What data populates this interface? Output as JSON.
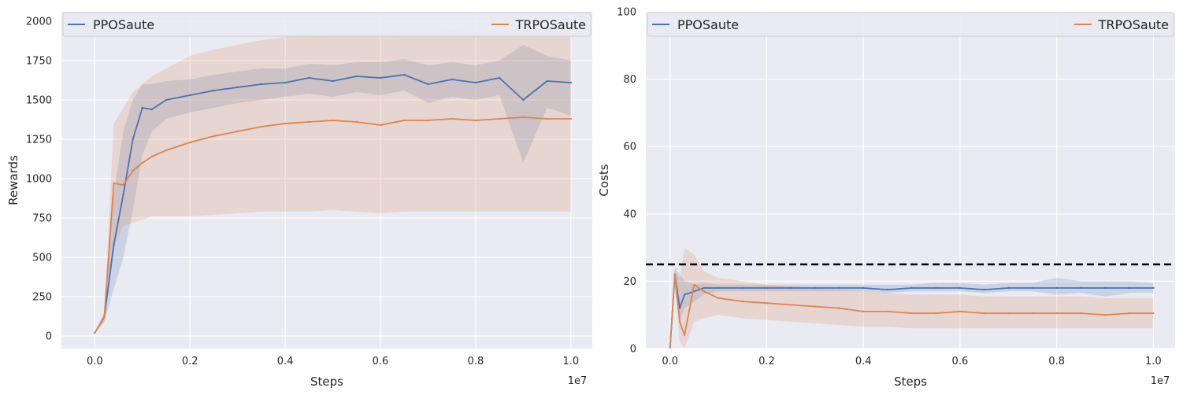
{
  "colors": {
    "background": "#eaeaf2",
    "grid": "#ffffff",
    "ppo": "#4c72b0",
    "trpo": "#dd8452",
    "threshold": "#000000"
  },
  "chart_data": [
    {
      "type": "line",
      "xlabel": "Steps",
      "ylabel": "Rewards",
      "x_offset_label": "1e7",
      "xlim": [
        -0.07,
        1.045
      ],
      "ylim": [
        -80,
        2060
      ],
      "xticks": [
        0.0,
        0.2,
        0.4,
        0.6,
        0.8,
        1.0
      ],
      "xtick_labels": [
        "0.0",
        "0.2",
        "0.4",
        "0.6",
        "0.8",
        "1.0"
      ],
      "yticks": [
        0,
        250,
        500,
        750,
        1000,
        1250,
        1500,
        1750,
        2000
      ],
      "ytick_labels": [
        "0",
        "250",
        "500",
        "750",
        "1000",
        "1250",
        "1500",
        "1750",
        "2000"
      ],
      "grid": true,
      "legend": {
        "placement": "top",
        "entries": [
          "PPOSaute",
          "TRPOSaute"
        ]
      },
      "x": [
        0.0,
        0.02,
        0.04,
        0.06,
        0.08,
        0.1,
        0.12,
        0.15,
        0.2,
        0.25,
        0.3,
        0.35,
        0.4,
        0.45,
        0.5,
        0.55,
        0.6,
        0.65,
        0.7,
        0.75,
        0.8,
        0.85,
        0.9,
        0.95,
        1.0
      ],
      "series": [
        {
          "name": "PPOSaute",
          "values": [
            20,
            120,
            580,
            900,
            1250,
            1450,
            1440,
            1500,
            1530,
            1560,
            1580,
            1600,
            1610,
            1640,
            1620,
            1650,
            1640,
            1660,
            1600,
            1630,
            1610,
            1640,
            1500,
            1620,
            1610
          ],
          "lower": [
            20,
            90,
            300,
            500,
            800,
            1150,
            1300,
            1380,
            1420,
            1450,
            1480,
            1500,
            1520,
            1540,
            1520,
            1550,
            1530,
            1560,
            1480,
            1520,
            1500,
            1530,
            1100,
            1450,
            1400
          ],
          "upper": [
            20,
            150,
            900,
            1300,
            1500,
            1600,
            1600,
            1620,
            1630,
            1660,
            1680,
            1700,
            1700,
            1730,
            1720,
            1740,
            1740,
            1760,
            1720,
            1740,
            1720,
            1750,
            1850,
            1780,
            1750
          ]
        },
        {
          "name": "TRPOSaute",
          "values": [
            20,
            120,
            970,
            960,
            1050,
            1100,
            1140,
            1180,
            1230,
            1270,
            1300,
            1330,
            1350,
            1360,
            1370,
            1360,
            1340,
            1370,
            1370,
            1380,
            1370,
            1380,
            1390,
            1380,
            1380
          ],
          "lower": [
            20,
            90,
            560,
            700,
            720,
            740,
            760,
            760,
            760,
            770,
            780,
            790,
            790,
            790,
            800,
            790,
            780,
            790,
            790,
            790,
            790,
            790,
            790,
            790,
            790
          ],
          "upper": [
            20,
            150,
            1350,
            1450,
            1550,
            1600,
            1650,
            1700,
            1780,
            1820,
            1850,
            1880,
            1900,
            1910,
            1920,
            1920,
            1920,
            1930,
            1930,
            1940,
            1930,
            1940,
            1950,
            1950,
            1950
          ]
        }
      ]
    },
    {
      "type": "line",
      "xlabel": "Steps",
      "ylabel": "Costs",
      "x_offset_label": "1e7",
      "xlim": [
        -0.05,
        1.045
      ],
      "ylim": [
        0,
        100
      ],
      "xticks": [
        0.0,
        0.2,
        0.4,
        0.6,
        0.8,
        1.0
      ],
      "xtick_labels": [
        "0.0",
        "0.2",
        "0.4",
        "0.6",
        "0.8",
        "1.0"
      ],
      "yticks": [
        0,
        20,
        40,
        60,
        80,
        100
      ],
      "ytick_labels": [
        "0",
        "20",
        "40",
        "60",
        "80",
        "100"
      ],
      "grid": true,
      "threshold": 25,
      "legend": {
        "placement": "top",
        "entries": [
          "PPOSaute",
          "TRPOSaute"
        ]
      },
      "x": [
        0.0,
        0.01,
        0.02,
        0.03,
        0.05,
        0.07,
        0.1,
        0.15,
        0.2,
        0.25,
        0.3,
        0.35,
        0.4,
        0.45,
        0.5,
        0.55,
        0.6,
        0.65,
        0.7,
        0.75,
        0.8,
        0.85,
        0.9,
        0.95,
        1.0
      ],
      "series": [
        {
          "name": "PPOSaute",
          "values": [
            0,
            22,
            12,
            16,
            17,
            18,
            18,
            18,
            18,
            18,
            18,
            18,
            18,
            17.5,
            18,
            18,
            18,
            17.5,
            18,
            18,
            18,
            18,
            18,
            18,
            18
          ],
          "lower": [
            0,
            18,
            8,
            12,
            14,
            16,
            17,
            17,
            17,
            17,
            17,
            17,
            17,
            16.5,
            17,
            17,
            17,
            16.5,
            17,
            17,
            16,
            16.5,
            15.5,
            16.5,
            16.5
          ],
          "upper": [
            0,
            24,
            22,
            20,
            19,
            19.5,
            19,
            19,
            19,
            19,
            19,
            19,
            19,
            19,
            19,
            19.5,
            19.5,
            19,
            19.5,
            19.5,
            21,
            20,
            20,
            20,
            19.5
          ]
        },
        {
          "name": "TRPOSaute",
          "values": [
            0,
            22,
            8,
            4,
            19,
            17,
            15,
            14,
            13.5,
            13,
            12.5,
            12,
            11,
            11,
            10.5,
            10.5,
            11,
            10.5,
            10.5,
            10.5,
            10.5,
            10.5,
            10,
            10.5,
            10.5
          ],
          "lower": [
            0,
            20,
            2,
            0,
            8,
            9,
            10,
            9,
            8.5,
            8,
            7.5,
            7,
            6.5,
            6.5,
            6,
            6,
            6,
            6,
            6,
            6,
            6,
            6,
            6,
            6,
            6
          ],
          "upper": [
            0,
            24,
            20,
            30,
            28,
            23,
            21,
            20,
            19,
            18.5,
            18,
            17.5,
            17,
            16.5,
            16,
            16,
            16,
            15.5,
            15.5,
            15.5,
            15.5,
            15.5,
            15,
            15,
            15
          ]
        }
      ]
    }
  ]
}
